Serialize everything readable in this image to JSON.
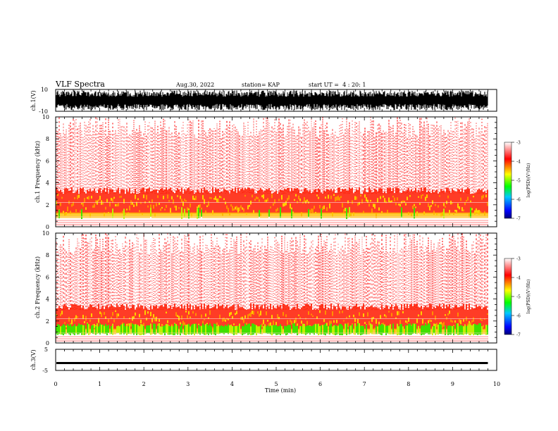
{
  "header": {
    "title": "VLF Spectra",
    "date": "Aug.30, 2022",
    "station": "station= KAP",
    "start": "start UT =  4 : 20: 1"
  },
  "chart_data": [
    {
      "type": "line",
      "name": "ch1-waveform",
      "ylabel": "ch.1(V)",
      "yticks": [
        "10",
        "-10"
      ],
      "ylim": [
        -10,
        10
      ],
      "xlim": [
        0,
        10
      ],
      "data_extent_min": 9.8,
      "description_of_values": "dense oscillating voltage trace spanning roughly -9 to +9 V"
    },
    {
      "type": "heatmap",
      "name": "ch1-spectrogram",
      "ylabel": "ch.1 Frequency (kHz)",
      "ytick_labels": [
        "0",
        "2",
        "4",
        "6",
        "8",
        "10"
      ],
      "ylim": [
        0,
        10
      ],
      "xlim": [
        0,
        10
      ],
      "data_extent_min": 9.8,
      "colorbar": {
        "label": "log(PSD)(V²/Hz)",
        "ticks": [
          "-3",
          "-4",
          "-5",
          "-6",
          "-7"
        ],
        "range": [
          -7,
          -3
        ],
        "colors": [
          "#00007a",
          "#0000ff",
          "#00c8ff",
          "#00ff00",
          "#ffff00",
          "#ff8000",
          "#ff0000",
          "#ffffff"
        ]
      }
    },
    {
      "type": "heatmap",
      "name": "ch2-spectrogram",
      "ylabel": "ch.2 Frequency (kHz)",
      "ytick_labels": [
        "0",
        "2",
        "4",
        "6",
        "8",
        "10"
      ],
      "ylim": [
        0,
        10
      ],
      "xlim": [
        0,
        10
      ],
      "data_extent_min": 9.8,
      "colorbar": {
        "label": "log(PSD)(V²/Hz)",
        "ticks": [
          "-3",
          "-4",
          "-5",
          "-6",
          "-7"
        ],
        "range": [
          -7,
          -3
        ],
        "colors": [
          "#00007a",
          "#0000ff",
          "#00c8ff",
          "#00ff00",
          "#ffff00",
          "#ff8000",
          "#ff0000",
          "#ffffff"
        ]
      }
    },
    {
      "type": "line",
      "name": "ch3-waveform",
      "ylabel": "ch.3(V)",
      "yticks": [
        "5",
        "0",
        "-5"
      ],
      "ylim": [
        -5,
        5
      ],
      "xlim": [
        0,
        10
      ],
      "data_extent_min": 9.8,
      "description_of_values": "narrow dense band centered near -1.5 V"
    }
  ],
  "xaxis": {
    "label": "Time (min)",
    "ticks": [
      "0",
      "1",
      "2",
      "3",
      "4",
      "5",
      "6",
      "7",
      "8",
      "9",
      "10"
    ]
  }
}
